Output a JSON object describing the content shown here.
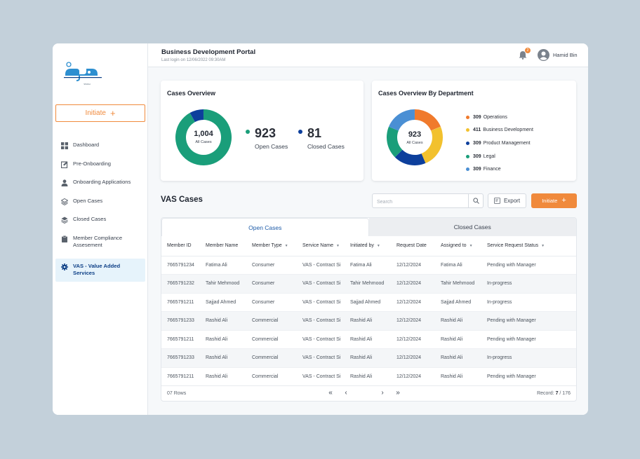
{
  "logo": {
    "mark": "سمة",
    "caption": "SIMAH"
  },
  "sidebar": {
    "initiate_label": "Initiate",
    "items": [
      {
        "label": "Dashboard",
        "icon": "dashboard-icon"
      },
      {
        "label": "Pre-Onboarding",
        "icon": "pre-onboarding-icon"
      },
      {
        "label": "Onboarding Applications",
        "icon": "user-icon"
      },
      {
        "label": "Open Cases",
        "icon": "layers-icon"
      },
      {
        "label": "Closed Cases",
        "icon": "layers-icon"
      },
      {
        "label": "Member Compliance Assesement",
        "icon": "clipboard-icon"
      },
      {
        "label": "VAS - Value Added Services",
        "icon": "gear-icon"
      }
    ]
  },
  "header": {
    "title": "Business Development Portal",
    "last_login": "Last login on 12/06/2022 09:30AM",
    "notification_count": "2",
    "user_name": "Hamid Bin"
  },
  "overview": {
    "title": "Cases Overview",
    "total": "1,004",
    "total_label": "All Cases",
    "open_value": "923",
    "open_label": "Open Cases",
    "closed_value": "81",
    "closed_label": "Closed Cases",
    "colors": {
      "open": "#1a9e7a",
      "closed": "#0d3f9c"
    }
  },
  "department": {
    "title": "Cases Overview By Department",
    "total": "923",
    "total_label": "All Cases",
    "items": [
      {
        "value": "309",
        "label": "Operations",
        "color": "#f07a2c"
      },
      {
        "value": "411",
        "label": "Business Development",
        "color": "#f2c12e"
      },
      {
        "value": "309",
        "label": "Product Management",
        "color": "#0d3f9c"
      },
      {
        "value": "309",
        "label": "Legal",
        "color": "#1a9e7a"
      },
      {
        "value": "309",
        "label": "Finance",
        "color": "#4a8fd4"
      }
    ]
  },
  "vas": {
    "title": "VAS Cases",
    "search_placeholder": "Search",
    "export_label": "Export",
    "initiate_label": "Initiate",
    "tabs": [
      "Open Cases",
      "Closed Cases"
    ],
    "columns": [
      "Member ID",
      "Member Name",
      "Member Type",
      "Service Name",
      "Initiated by",
      "Request Date",
      "Assigned to",
      "Service Request Status"
    ],
    "rows": [
      [
        "7665791234",
        "Fatima Ali",
        "Consumer",
        "VAS - Contract Si",
        "Fatima Ali",
        "12/12/2024",
        "Fatima Ali",
        "Pending with Manager"
      ],
      [
        "7665791232",
        "Tahir Mehmood",
        "Consumer",
        "VAS - Contract Si",
        "Tahir Mehmood",
        "12/12/2024",
        "Tahir Mehmood",
        "In-progress"
      ],
      [
        "7665791211",
        "Sajjad Ahmed",
        "Consumer",
        "VAS - Contract Si",
        "Sajjad Ahmed",
        "12/12/2024",
        "Sajjad Ahmed",
        "In-progress"
      ],
      [
        "7665791233",
        "Rashid Ali",
        "Commercial",
        "VAS - Contract Si",
        "Rashid Ali",
        "12/12/2024",
        "Rashid Ali",
        "Pending with Manager"
      ],
      [
        "7665791211",
        "Rashid Ali",
        "Commercial",
        "VAS - Contract Si",
        "Rashid Ali",
        "12/12/2024",
        "Rashid Ali",
        "Pending with Manager"
      ],
      [
        "7665791233",
        "Rashid Ali",
        "Commercial",
        "VAS - Contract Si",
        "Rashid Ali",
        "12/12/2024",
        "Rashid Ali",
        "In-progress"
      ],
      [
        "7665791211",
        "Rashid Ali",
        "Commercial",
        "VAS - Contract Si",
        "Rashid Ali",
        "12/12/2024",
        "Rashid Ali",
        "Pending with Manager"
      ]
    ],
    "footer_rows": "07 Rows",
    "record_label": "Record:",
    "record_current": "7",
    "record_total": "/ 176"
  }
}
